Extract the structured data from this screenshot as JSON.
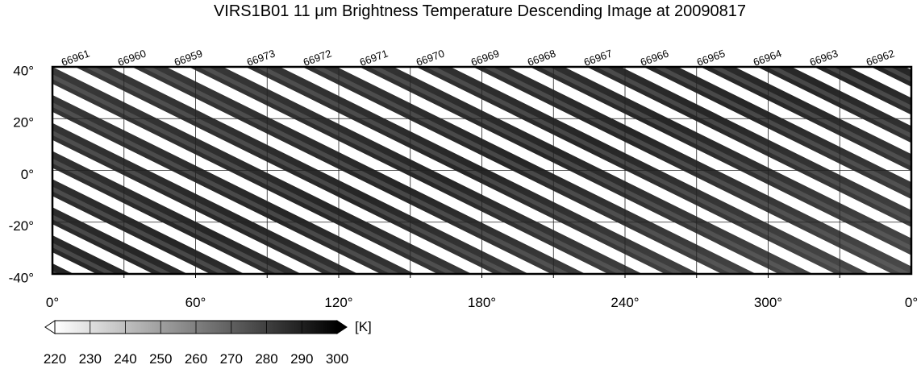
{
  "title": "VIRS1B01 11 μm Brightness Temperature Descending Image at 20090817",
  "orbits": [
    "66961",
    "66960",
    "66959",
    "66973",
    "66972",
    "66971",
    "66970",
    "66969",
    "66968",
    "66967",
    "66966",
    "66965",
    "66964",
    "66963",
    "66962"
  ],
  "lat_labels": [
    "40°",
    "20°",
    "0°",
    "-20°",
    "-40°"
  ],
  "lon_labels": [
    "0°",
    "60°",
    "120°",
    "180°",
    "240°",
    "300°",
    "0°"
  ],
  "colorbar": {
    "ticks": [
      "220",
      "230",
      "240",
      "250",
      "260",
      "270",
      "280",
      "290",
      "300"
    ],
    "unit": "[K]"
  }
}
